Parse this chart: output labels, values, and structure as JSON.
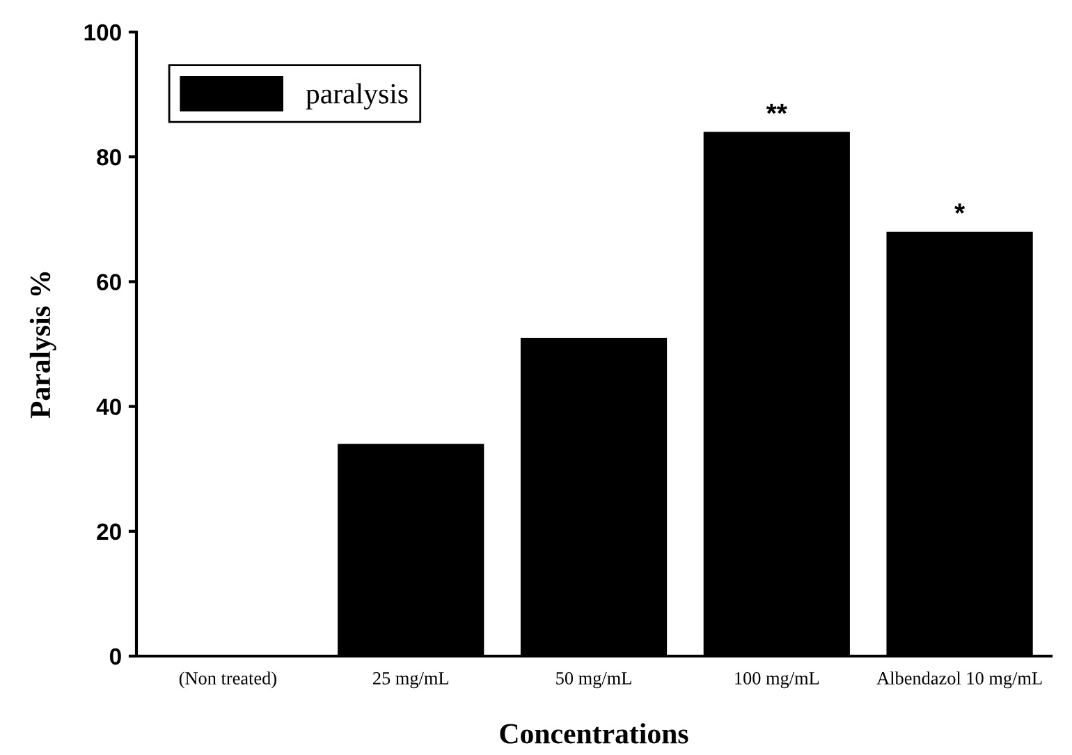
{
  "chart_data": {
    "type": "bar",
    "xlabel": "Concentrations",
    "ylabel": "Paralysis %",
    "categories": [
      "(Non treated)",
      "25 mg/mL",
      "50 mg/mL",
      "100 mg/mL",
      "Albendazol 10 mg/mL"
    ],
    "series": [
      {
        "name": "paralysis",
        "color": "#000000",
        "values": [
          0,
          34,
          51,
          84,
          68
        ]
      }
    ],
    "ylim": [
      0,
      100
    ],
    "yticks": [
      0,
      20,
      40,
      60,
      80,
      100
    ],
    "grid": false,
    "legend": "top left",
    "annotations": [
      {
        "text": "**",
        "x": "100 mg/mL",
        "y": 84
      },
      {
        "text": "*",
        "x": "Albendazol 10 mg/mL",
        "y": 68
      }
    ]
  }
}
